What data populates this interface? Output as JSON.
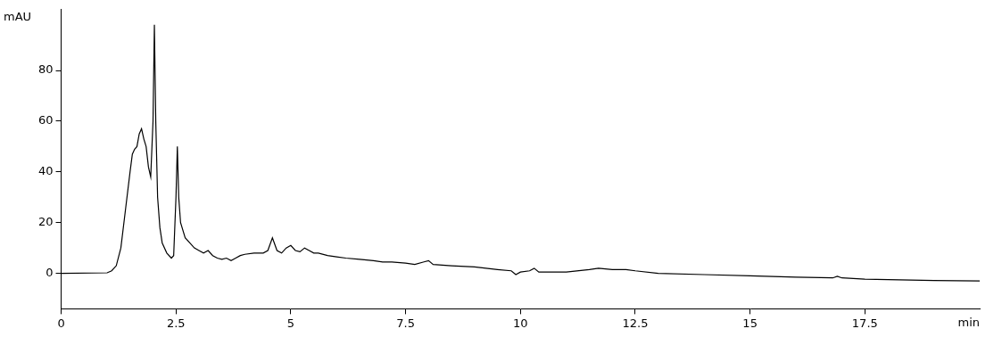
{
  "chart_data": {
    "type": "line",
    "x_label": "min",
    "y_label": "mAU",
    "color": "#000000",
    "grid": false,
    "xlim": [
      0,
      20
    ],
    "xticks": [
      0,
      2.5,
      5,
      7.5,
      10,
      12.5,
      15,
      17.5
    ],
    "ylim": [
      -14,
      104
    ],
    "yticks": [
      0,
      20,
      40,
      60,
      80
    ],
    "x": [
      0,
      1.0,
      1.1,
      1.2,
      1.3,
      1.4,
      1.5,
      1.55,
      1.6,
      1.65,
      1.7,
      1.75,
      1.8,
      1.85,
      1.9,
      1.95,
      2.0,
      2.03,
      2.06,
      2.1,
      2.15,
      2.2,
      2.3,
      2.4,
      2.45,
      2.5,
      2.53,
      2.56,
      2.6,
      2.7,
      2.8,
      2.9,
      3.0,
      3.1,
      3.2,
      3.3,
      3.4,
      3.5,
      3.6,
      3.7,
      3.8,
      3.9,
      4.0,
      4.2,
      4.4,
      4.5,
      4.6,
      4.7,
      4.8,
      4.9,
      5.0,
      5.1,
      5.2,
      5.3,
      5.4,
      5.5,
      5.6,
      5.8,
      6.0,
      6.2,
      6.5,
      6.8,
      7.0,
      7.2,
      7.5,
      7.7,
      7.9,
      8.0,
      8.1,
      8.5,
      9.0,
      9.5,
      9.8,
      9.9,
      10.0,
      10.2,
      10.3,
      10.4,
      10.6,
      11.0,
      11.5,
      11.7,
      12.0,
      12.3,
      12.5,
      13,
      14,
      15,
      16,
      16.8,
      16.9,
      17,
      17.5,
      18,
      19,
      20
    ],
    "values": [
      0,
      0.2,
      1,
      3,
      10,
      25,
      40,
      47,
      49,
      50,
      55,
      57,
      53,
      50,
      42,
      38,
      60,
      98,
      60,
      30,
      18,
      12,
      8,
      6,
      7,
      30,
      50,
      30,
      20,
      14,
      12,
      10,
      9,
      8,
      9,
      7,
      6,
      5.5,
      6,
      5,
      6,
      7,
      7.5,
      8,
      8,
      9,
      14,
      9,
      8,
      10,
      11,
      9,
      8.5,
      10,
      9,
      8,
      8,
      7,
      6.5,
      6,
      5.5,
      5,
      4.5,
      4.5,
      4,
      3.5,
      4.5,
      5,
      3.5,
      3,
      2.5,
      1.5,
      1,
      -0.5,
      0.5,
      1,
      2,
      0.5,
      0.5,
      0.5,
      1.5,
      2,
      1.5,
      1.5,
      1,
      0,
      -0.5,
      -1,
      -1.5,
      -1.8,
      -1.2,
      -1.8,
      -2.3,
      -2.5,
      -2.8,
      -3
    ]
  }
}
